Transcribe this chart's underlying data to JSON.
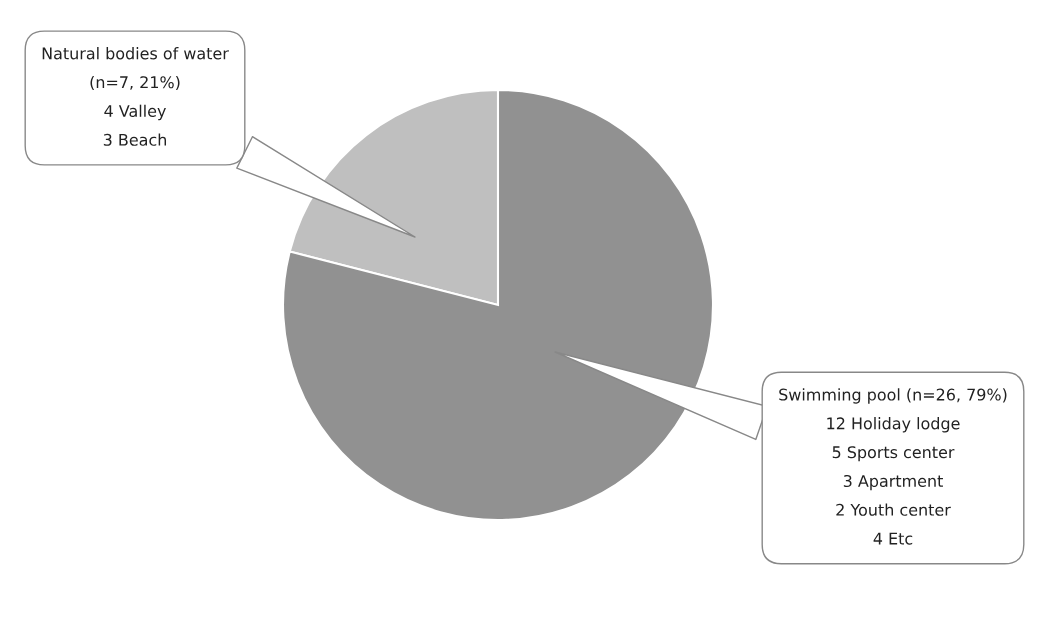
{
  "chart_data": {
    "type": "pie",
    "categories": [
      "Natural bodies of water\n(n=7, 21%)\n4 Valley\n3 Beach",
      "Swimming pool (n=26, 79%)\n12 Holiday lodge\n5 Sports center\n3 Apartment\n2 Youth center\n4 Etc"
    ],
    "values": [
      21,
      79
    ],
    "colors": [
      "#bfbfbf",
      "#919191"
    ],
    "legend": false
  }
}
